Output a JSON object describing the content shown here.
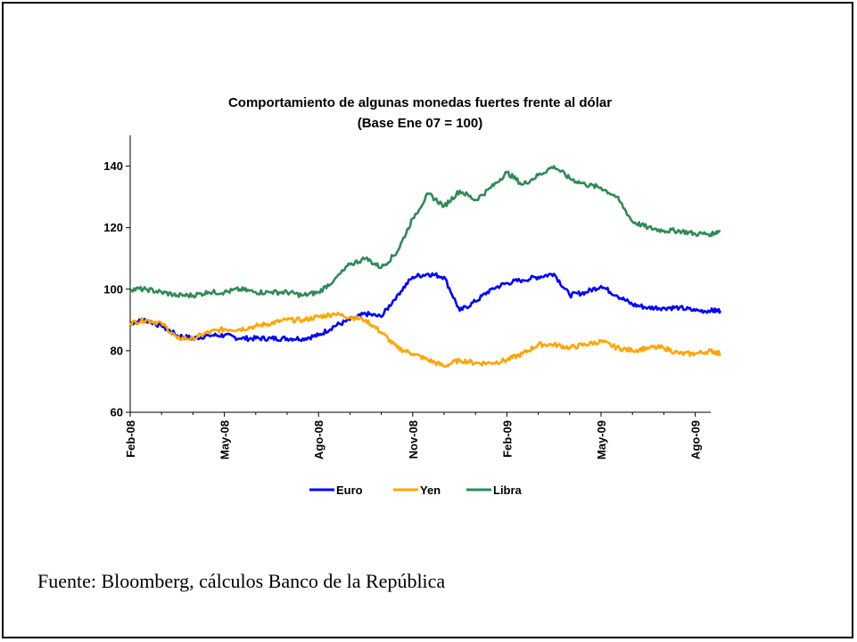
{
  "source_note": "Fuente: Bloomberg, cálculos Banco de la República",
  "chart_data": {
    "type": "line",
    "title": "Comportamiento de algunas monedas fuertes frente al dólar",
    "subtitle": "(Base Ene 07 = 100)",
    "xlabel": "",
    "ylabel": "",
    "x_tick_labels": [
      "Feb-08",
      "May-08",
      "Ago-08",
      "Nov-08",
      "Feb-09",
      "May-09",
      "Ago-09"
    ],
    "x_range_months": [
      0,
      18.8
    ],
    "ylim": [
      60,
      150
    ],
    "y_ticks": [
      60,
      80,
      100,
      120,
      140
    ],
    "grid": false,
    "legend_position": "bottom",
    "x": [
      0,
      0.5,
      1,
      1.5,
      2,
      2.5,
      3,
      3.5,
      4,
      4.5,
      5,
      5.5,
      6,
      6.5,
      7,
      7.5,
      8,
      8.5,
      9,
      9.5,
      10,
      10.5,
      11,
      11.5,
      12,
      12.5,
      13,
      13.5,
      14,
      14.5,
      15,
      15.5,
      16,
      16.5,
      17,
      17.5,
      18,
      18.5,
      18.8
    ],
    "series": [
      {
        "name": "Euro",
        "color": "#0000ff",
        "values": [
          89,
          90,
          88,
          85,
          84,
          85,
          85,
          84,
          84,
          84,
          84,
          84,
          85,
          88,
          90,
          92,
          91,
          98,
          104,
          105,
          104,
          93,
          96,
          100,
          102,
          103,
          104,
          105,
          98,
          99,
          101,
          98,
          95,
          94,
          94,
          94,
          93,
          93,
          93
        ]
      },
      {
        "name": "Yen",
        "color": "#ffa500",
        "values": [
          89,
          90,
          89,
          84,
          84,
          86,
          87,
          87,
          88,
          89,
          90,
          90,
          91,
          92,
          91,
          90,
          86,
          81,
          79,
          77,
          75,
          77,
          76,
          76,
          77,
          79,
          82,
          82,
          81,
          82,
          83,
          81,
          80,
          81,
          81,
          79,
          79,
          80,
          79
        ]
      },
      {
        "name": "Libra",
        "color": "#2e8b57",
        "values": [
          100,
          100,
          99,
          98,
          98,
          99,
          99,
          100,
          99,
          99,
          99,
          98,
          99,
          103,
          108,
          110,
          107,
          112,
          123,
          131,
          127,
          132,
          129,
          133,
          138,
          134,
          137,
          140,
          136,
          134,
          133,
          130,
          122,
          120,
          119,
          119,
          118,
          118,
          119
        ]
      }
    ]
  }
}
